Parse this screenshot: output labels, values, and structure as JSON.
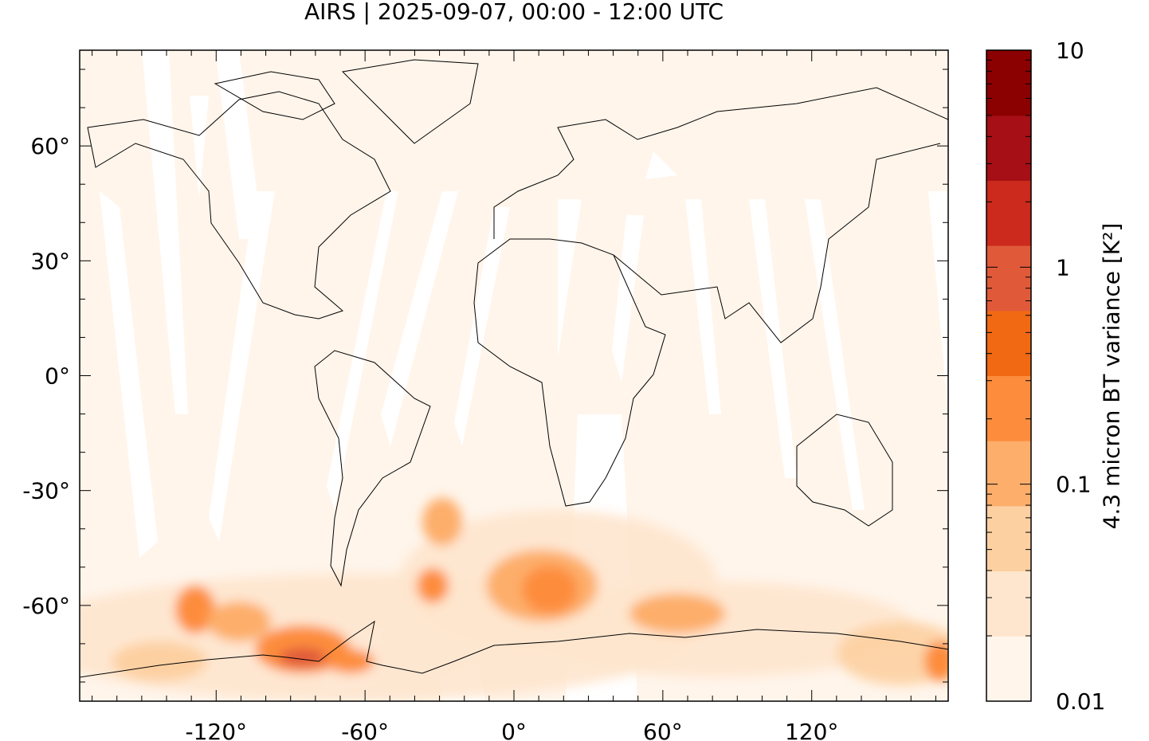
{
  "title": "AIRS | 2025-09-07, 00:00 - 12:00 UTC",
  "map": {
    "projection": "equirectangular",
    "lon_range": [
      -175,
      175
    ],
    "lat_range": [
      -85,
      85
    ],
    "x_ticks": [
      {
        "value": -120,
        "label": "-120°"
      },
      {
        "value": -60,
        "label": "-60°"
      },
      {
        "value": 0,
        "label": "0°"
      },
      {
        "value": 60,
        "label": "60°"
      },
      {
        "value": 120,
        "label": "120°"
      }
    ],
    "y_ticks": [
      {
        "value": 60,
        "label": "60°"
      },
      {
        "value": 30,
        "label": "30°"
      },
      {
        "value": 0,
        "label": "0°"
      },
      {
        "value": -30,
        "label": "-30°"
      },
      {
        "value": -60,
        "label": "-60°"
      }
    ],
    "background_color": "#fff5eb",
    "coastline_color": "#000000"
  },
  "colorbar": {
    "label": "4.3 micron BT variance [K²]",
    "scale": "log",
    "range": [
      0.01,
      10
    ],
    "tick_labels": [
      {
        "value": 10,
        "label": "10"
      },
      {
        "value": 1,
        "label": "1"
      },
      {
        "value": 0.1,
        "label": "0.1"
      },
      {
        "value": 0.01,
        "label": "0.01"
      }
    ],
    "colors": [
      "#fff5eb",
      "#fee6ce",
      "#fdd0a2",
      "#fdae6b",
      "#fd8d3c",
      "#f16913",
      "#e05a3a",
      "#cb2a1c",
      "#a50f15",
      "#8b0000"
    ]
  }
}
